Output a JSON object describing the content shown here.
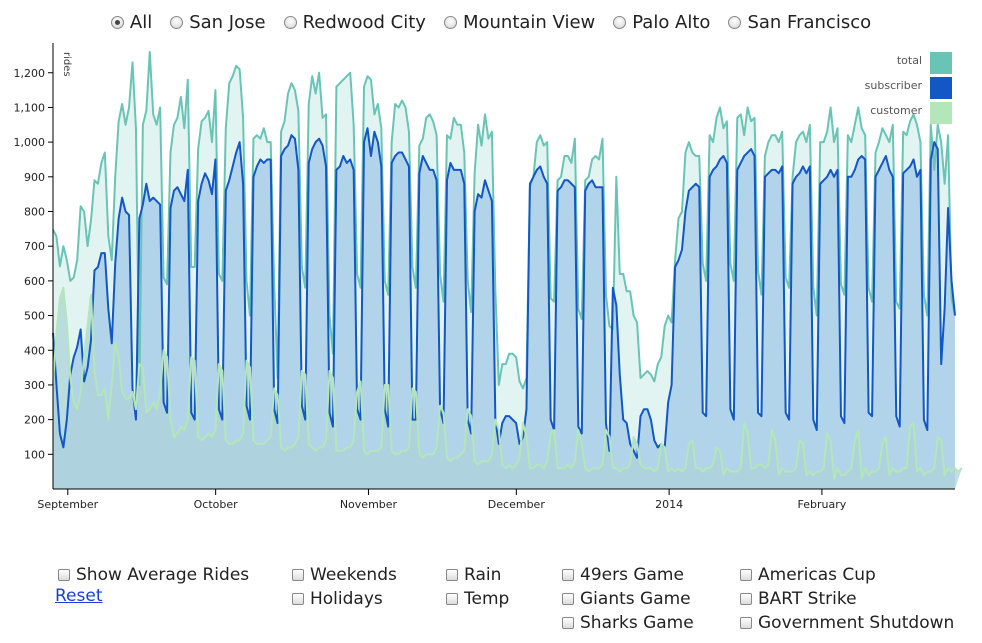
{
  "radios": [
    {
      "label": "All",
      "checked": true
    },
    {
      "label": "San Jose",
      "checked": false
    },
    {
      "label": "Redwood City",
      "checked": false
    },
    {
      "label": "Mountain View",
      "checked": false
    },
    {
      "label": "Palo Alto",
      "checked": false
    },
    {
      "label": "San Francisco",
      "checked": false
    }
  ],
  "checkboxes": {
    "show_average": "Show Average Rides",
    "weekends": "Weekends",
    "holidays": "Holidays",
    "rain": "Rain",
    "temp": "Temp",
    "niners": "49ers Game",
    "giants": "Giants Game",
    "sharks": "Sharks Game",
    "americas_cup": "Americas Cup",
    "bart_strike": "BART Strike",
    "shutdown": "Government Shutdown"
  },
  "reset_label": "Reset",
  "colors": {
    "total_fill": "#e2f4f1",
    "total_line": "#6ac4b6",
    "subscriber_fill": "#afd2e9",
    "subscriber_line": "#1356c5",
    "customer_fill": "#acd3d9",
    "customer_line": "#b3e6b8",
    "legend_total": "#6ac4b6",
    "legend_subscriber": "#1356c5",
    "legend_customer": "#b3e6b8"
  },
  "chart_data": {
    "type": "area",
    "ylabel": "rides",
    "ylim": [
      0,
      1280
    ],
    "yticks": [
      100,
      200,
      300,
      400,
      500,
      600,
      700,
      800,
      900,
      1000,
      1100,
      1200
    ],
    "x_start": "2013-08-29",
    "x_end": "2014-02-28",
    "xticks": [
      {
        "date": "2013-09-01",
        "label": "September"
      },
      {
        "date": "2013-10-01",
        "label": "October"
      },
      {
        "date": "2013-11-01",
        "label": "November"
      },
      {
        "date": "2013-12-01",
        "label": "December"
      },
      {
        "date": "2014-01-01",
        "label": "2014"
      },
      {
        "date": "2014-02-01",
        "label": "February"
      }
    ],
    "legend": [
      "total",
      "subscriber",
      "customer"
    ],
    "series": [
      {
        "name": "total",
        "values": [
          748,
          728,
          642,
          700,
          660,
          600,
          610,
          660,
          815,
          800,
          700,
          775,
          890,
          880,
          940,
          970,
          730,
          660,
          900,
          1060,
          1110,
          1050,
          1100,
          1230,
          1040,
          300,
          1050,
          1090,
          1260,
          1080,
          1050,
          1100,
          610,
          590,
          970,
          1050,
          1070,
          1130,
          1040,
          1180,
          640,
          640,
          980,
          1060,
          1070,
          1090,
          1000,
          1150,
          620,
          600,
          1040,
          1170,
          1190,
          1220,
          1210,
          1070,
          600,
          500,
          1010,
          1020,
          1010,
          1040,
          1000,
          1000,
          590,
          320,
          1030,
          1060,
          1140,
          1170,
          1150,
          1090,
          640,
          580,
          1110,
          1190,
          1140,
          1200,
          1070,
          1080,
          500,
          390,
          1160,
          1170,
          1180,
          1190,
          1200,
          1050,
          620,
          580,
          1160,
          1190,
          1180,
          1080,
          1110,
          1040,
          600,
          560,
          1000,
          1110,
          1100,
          1120,
          1100,
          1030,
          640,
          580,
          990,
          1010,
          1070,
          1080,
          1060,
          1020,
          620,
          540,
          1020,
          1010,
          1070,
          1050,
          1050,
          970,
          600,
          510,
          910,
          1050,
          990,
          1080,
          1010,
          1030,
          570,
          300,
          360,
          360,
          390,
          390,
          380,
          310,
          290,
          320,
          870,
          900,
          1000,
          1020,
          990,
          1000,
          550,
          540,
          890,
          900,
          960,
          960,
          940,
          1010,
          520,
          490,
          890,
          900,
          950,
          960,
          950,
          1010,
          560,
          470,
          460,
          900,
          620,
          620,
          570,
          570,
          500,
          480,
          320,
          330,
          340,
          330,
          310,
          360,
          380,
          470,
          500,
          480,
          660,
          780,
          800,
          970,
          1000,
          970,
          960,
          960,
          650,
          600,
          1020,
          1000,
          1070,
          1100,
          1040,
          1060,
          650,
          600,
          1070,
          1080,
          1020,
          1100,
          1060,
          1070,
          630,
          560,
          960,
          1000,
          1020,
          1020,
          1000,
          1030,
          610,
          580,
          900,
          1000,
          1020,
          1030,
          1000,
          1050,
          580,
          500,
          1000,
          1000,
          1030,
          1100,
          1000,
          1040,
          590,
          560,
          1020,
          1000,
          1050,
          1100,
          1040,
          1020,
          580,
          540,
          970,
          1000,
          1040,
          1020,
          1000,
          1050,
          540,
          520,
          1030,
          1020,
          1060,
          1080,
          1050,
          1000,
          560,
          500,
          1050,
          920,
          1050,
          1000,
          880,
          1020,
          550,
          500
        ]
      },
      {
        "name": "subscriber",
        "values": [
          450,
          300,
          160,
          120,
          200,
          330,
          380,
          410,
          460,
          310,
          350,
          430,
          630,
          640,
          680,
          680,
          520,
          420,
          650,
          780,
          840,
          800,
          790,
          290,
          200,
          780,
          820,
          880,
          830,
          840,
          830,
          820,
          250,
          220,
          810,
          860,
          870,
          850,
          830,
          920,
          220,
          200,
          830,
          880,
          910,
          890,
          850,
          950,
          230,
          200,
          860,
          890,
          930,
          970,
          1000,
          880,
          240,
          200,
          900,
          930,
          950,
          940,
          950,
          950,
          230,
          190,
          960,
          980,
          990,
          1020,
          1010,
          920,
          240,
          200,
          940,
          980,
          1000,
          1010,
          990,
          930,
          220,
          180,
          920,
          930,
          960,
          940,
          950,
          920,
          230,
          200,
          1000,
          1040,
          960,
          1030,
          1000,
          930,
          230,
          180,
          940,
          960,
          970,
          970,
          950,
          930,
          200,
          200,
          910,
          960,
          940,
          920,
          920,
          890,
          230,
          190,
          890,
          940,
          920,
          920,
          920,
          880,
          200,
          160,
          800,
          850,
          840,
          890,
          860,
          830,
          200,
          130,
          190,
          210,
          210,
          200,
          190,
          130,
          150,
          230,
          880,
          900,
          920,
          930,
          900,
          880,
          200,
          170,
          860,
          870,
          890,
          890,
          880,
          870,
          180,
          160,
          860,
          880,
          890,
          870,
          870,
          870,
          190,
          110,
          580,
          530,
          330,
          200,
          190,
          130,
          110,
          90,
          210,
          230,
          230,
          200,
          140,
          120,
          130,
          120,
          250,
          300,
          640,
          660,
          690,
          800,
          860,
          870,
          880,
          870,
          220,
          210,
          900,
          920,
          930,
          950,
          960,
          940,
          230,
          200,
          920,
          940,
          960,
          970,
          980,
          960,
          220,
          210,
          900,
          910,
          920,
          920,
          910,
          930,
          220,
          200,
          880,
          900,
          910,
          930,
          910,
          930,
          200,
          170,
          880,
          890,
          900,
          920,
          900,
          920,
          210,
          190,
          900,
          900,
          920,
          950,
          960,
          950,
          220,
          210,
          900,
          920,
          940,
          960,
          920,
          900,
          210,
          180,
          910,
          920,
          930,
          950,
          900,
          920,
          200,
          170,
          950,
          1000,
          980,
          360,
          520,
          810,
          600,
          500
        ]
      },
      {
        "name": "customer",
        "values": [
          300,
          450,
          550,
          580,
          480,
          320,
          250,
          230,
          280,
          380,
          470,
          560,
          340,
          270,
          270,
          290,
          200,
          300,
          420,
          380,
          280,
          260,
          260,
          280,
          230,
          360,
          350,
          220,
          230,
          250,
          230,
          280,
          400,
          380,
          200,
          150,
          160,
          180,
          170,
          200,
          380,
          370,
          150,
          140,
          150,
          160,
          150,
          170,
          360,
          340,
          140,
          130,
          130,
          140,
          140,
          160,
          370,
          350,
          140,
          130,
          130,
          130,
          140,
          150,
          290,
          270,
          120,
          110,
          120,
          120,
          130,
          150,
          340,
          330,
          130,
          120,
          110,
          120,
          120,
          140,
          340,
          320,
          110,
          110,
          110,
          120,
          120,
          140,
          280,
          310,
          110,
          100,
          110,
          110,
          110,
          120,
          300,
          300,
          110,
          100,
          100,
          110,
          110,
          120,
          290,
          280,
          100,
          90,
          100,
          100,
          100,
          120,
          240,
          220,
          90,
          80,
          90,
          90,
          100,
          110,
          230,
          210,
          80,
          70,
          80,
          80,
          80,
          100,
          200,
          170,
          70,
          60,
          70,
          60,
          70,
          90,
          190,
          150,
          60,
          60,
          70,
          70,
          60,
          80,
          160,
          170,
          60,
          60,
          60,
          70,
          60,
          80,
          170,
          130,
          60,
          50,
          60,
          60,
          60,
          70,
          170,
          150,
          60,
          60,
          50,
          60,
          60,
          70,
          150,
          130,
          70,
          60,
          60,
          60,
          50,
          60,
          130,
          120,
          50,
          60,
          50,
          60,
          50,
          60,
          130,
          140,
          60,
          60,
          50,
          60,
          60,
          70,
          120,
          110,
          40,
          60,
          50,
          50,
          50,
          60,
          190,
          160,
          60,
          60,
          70,
          70,
          60,
          70,
          170,
          140,
          40,
          60,
          50,
          50,
          50,
          60,
          140,
          130,
          40,
          50,
          40,
          50,
          50,
          60,
          160,
          140,
          30,
          60,
          40,
          40,
          50,
          60,
          140,
          170,
          30,
          60,
          40,
          50,
          50,
          60,
          130,
          150,
          40,
          60,
          50,
          50,
          60,
          60,
          180,
          190,
          50,
          60,
          40,
          50,
          50,
          60,
          150,
          140,
          40,
          60,
          50,
          60,
          50,
          60
        ]
      }
    ]
  }
}
